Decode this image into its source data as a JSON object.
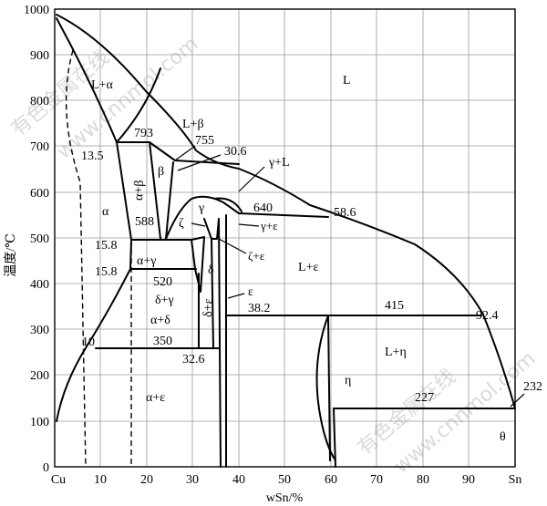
{
  "diagram": {
    "y_axis": {
      "label": "温度/℃",
      "ticks": [
        "0",
        "100",
        "200",
        "300",
        "400",
        "500",
        "600",
        "700",
        "800",
        "900",
        "1000"
      ]
    },
    "x_axis": {
      "label": "wSn/%",
      "ticks": [
        "Cu",
        "10",
        "20",
        "30",
        "40",
        "50",
        "60",
        "70",
        "80",
        "90",
        "Sn"
      ]
    },
    "phase_labels": {
      "L": "L",
      "L_alpha": "L+α",
      "L_beta": "L+β",
      "gamma_L": "γ+L",
      "L_epsilon": "L+ε",
      "L_eta": "L+η",
      "alpha": "α",
      "alpha_beta": "α+β",
      "beta": "β",
      "gamma": "γ",
      "gamma_epsilon": "γ+ε",
      "zeta": "ζ",
      "zeta_epsilon": "ζ+ε",
      "alpha_gamma": "α+γ",
      "delta": "δ",
      "delta_gamma": "δ+γ",
      "alpha_delta": "α+δ",
      "delta_epsilon": "δ+ε",
      "epsilon": "ε",
      "eta": "η",
      "theta": "θ",
      "alpha_epsilon": "α+ε"
    },
    "point_labels": {
      "t793": "793",
      "t755": "755",
      "c306": "30.6",
      "c135": "13.5",
      "t640": "640",
      "c586": "58.6",
      "t588": "588",
      "c158a": "15.8",
      "c158b": "15.8",
      "t520": "520",
      "c382": "38.2",
      "t415": "415",
      "c924": "92.4",
      "t350": "350",
      "c10": "10",
      "c326": "32.6",
      "t232": "232",
      "t227": "227"
    },
    "watermark": {
      "line1": "有色金属在线",
      "line2": "www.cnnmol.com",
      "line3": "有色金属在线",
      "line4": "www.cnnmol.com"
    }
  }
}
